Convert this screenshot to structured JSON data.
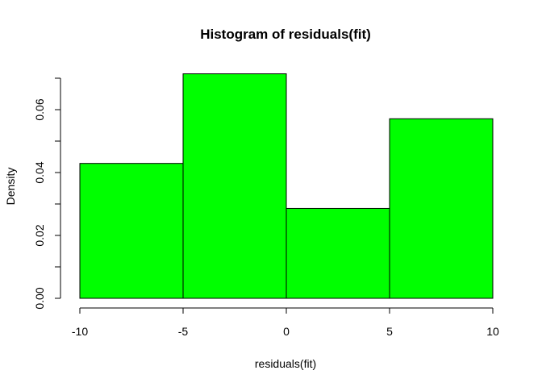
{
  "chart_data": {
    "type": "bar",
    "title": "Histogram of residuals(fit)",
    "xlabel": "residuals(fit)",
    "ylabel": "Density",
    "bins": [
      {
        "start": -10,
        "end": -5,
        "density": 0.0429
      },
      {
        "start": -5,
        "end": 0,
        "density": 0.0714
      },
      {
        "start": 0,
        "end": 5,
        "density": 0.0286
      },
      {
        "start": 5,
        "end": 10,
        "density": 0.0571
      }
    ],
    "xlim": [
      -10,
      10
    ],
    "ylim": [
      0,
      0.07
    ],
    "x_ticks": [
      -10,
      -5,
      0,
      5,
      10
    ],
    "x_tick_labels": [
      "-10",
      "-5",
      "0",
      "5",
      "10"
    ],
    "y_ticks": [
      0,
      0.01,
      0.02,
      0.03,
      0.04,
      0.05,
      0.06,
      0.07
    ],
    "y_tick_labels": [
      "0.00",
      "",
      "0.02",
      "",
      "0.04",
      "",
      "0.06",
      ""
    ],
    "bar_color": "#00ff00",
    "grid": false,
    "legend": false
  }
}
